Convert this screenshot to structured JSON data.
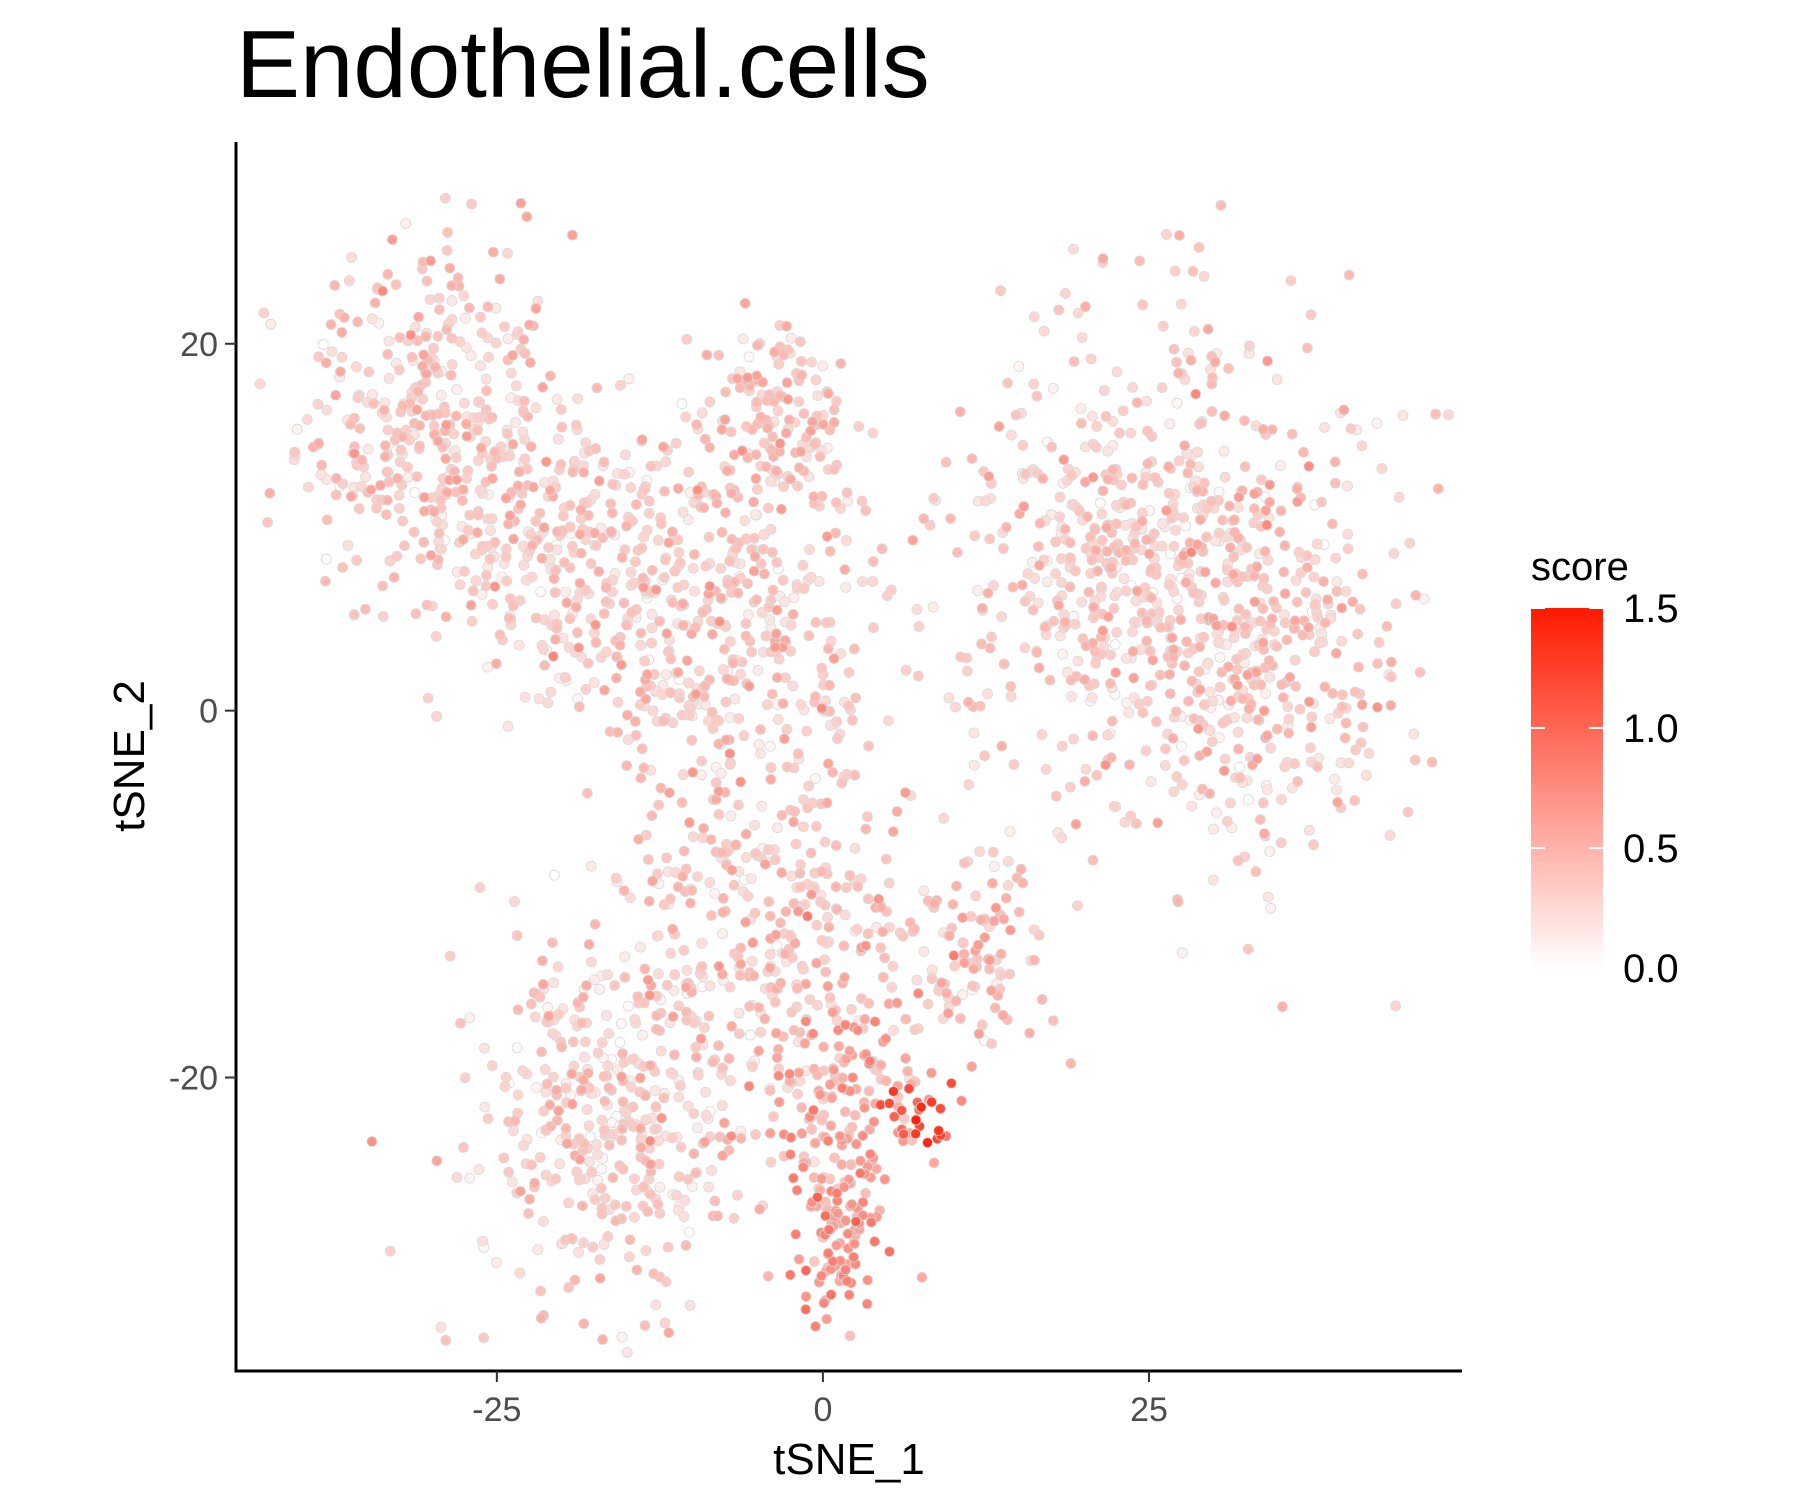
{
  "chart_data": {
    "type": "scatter",
    "title": "Endothelial.cells",
    "xlabel": "tSNE_1",
    "ylabel": "tSNE_2",
    "xlim": [
      -45,
      49
    ],
    "ylim": [
      -36,
      31
    ],
    "x_ticks": [
      {
        "value": -25,
        "label": "-25"
      },
      {
        "value": 0,
        "label": "0"
      },
      {
        "value": 25,
        "label": "25"
      }
    ],
    "y_ticks": [
      {
        "value": 20,
        "label": "20"
      },
      {
        "value": 0,
        "label": "0"
      },
      {
        "value": -20,
        "label": "-20"
      }
    ],
    "grid": false,
    "legend": {
      "title": "score",
      "position": "right",
      "color_low": "#ffffff",
      "color_high": "#ff1a00",
      "range": [
        0,
        1.5
      ],
      "ticks": [
        {
          "value": 0.0,
          "label": "0.0"
        },
        {
          "value": 0.5,
          "label": "0.5"
        },
        {
          "value": 1.0,
          "label": "1.0"
        },
        {
          "value": 1.5,
          "label": "1.5"
        }
      ]
    },
    "point_outline_color": "#d9d9d9",
    "clusters": [
      {
        "center": [
          -30,
          16
        ],
        "spread": [
          5,
          5
        ],
        "count": 340,
        "score_mean": 0.35
      },
      {
        "center": [
          -20,
          9
        ],
        "spread": [
          6,
          4
        ],
        "count": 300,
        "score_mean": 0.35
      },
      {
        "center": [
          -3,
          16
        ],
        "spread": [
          2.5,
          3
        ],
        "count": 130,
        "score_mean": 0.4
      },
      {
        "center": [
          -7,
          3
        ],
        "spread": [
          6,
          6
        ],
        "count": 420,
        "score_mean": 0.35
      },
      {
        "center": [
          25,
          8
        ],
        "spread": [
          8,
          7
        ],
        "count": 650,
        "score_mean": 0.35
      },
      {
        "center": [
          34,
          1
        ],
        "spread": [
          6,
          5
        ],
        "count": 260,
        "score_mean": 0.35
      },
      {
        "center": [
          -17,
          -22
        ],
        "spread": [
          5,
          5
        ],
        "count": 380,
        "score_mean": 0.32
      },
      {
        "center": [
          -3,
          -14
        ],
        "spread": [
          6,
          5
        ],
        "count": 300,
        "score_mean": 0.38
      },
      {
        "center": [
          12,
          -13
        ],
        "spread": [
          3,
          2.5
        ],
        "count": 100,
        "score_mean": 0.4
      },
      {
        "center": [
          2,
          -22
        ],
        "spread": [
          3.5,
          3
        ],
        "count": 140,
        "score_mean": 0.6
      },
      {
        "center": [
          1,
          -29
        ],
        "spread": [
          1.5,
          2.5
        ],
        "count": 80,
        "score_mean": 0.7
      },
      {
        "center": [
          7,
          -22
        ],
        "spread": [
          1.5,
          1
        ],
        "count": 20,
        "score_mean": 1.2
      }
    ]
  }
}
